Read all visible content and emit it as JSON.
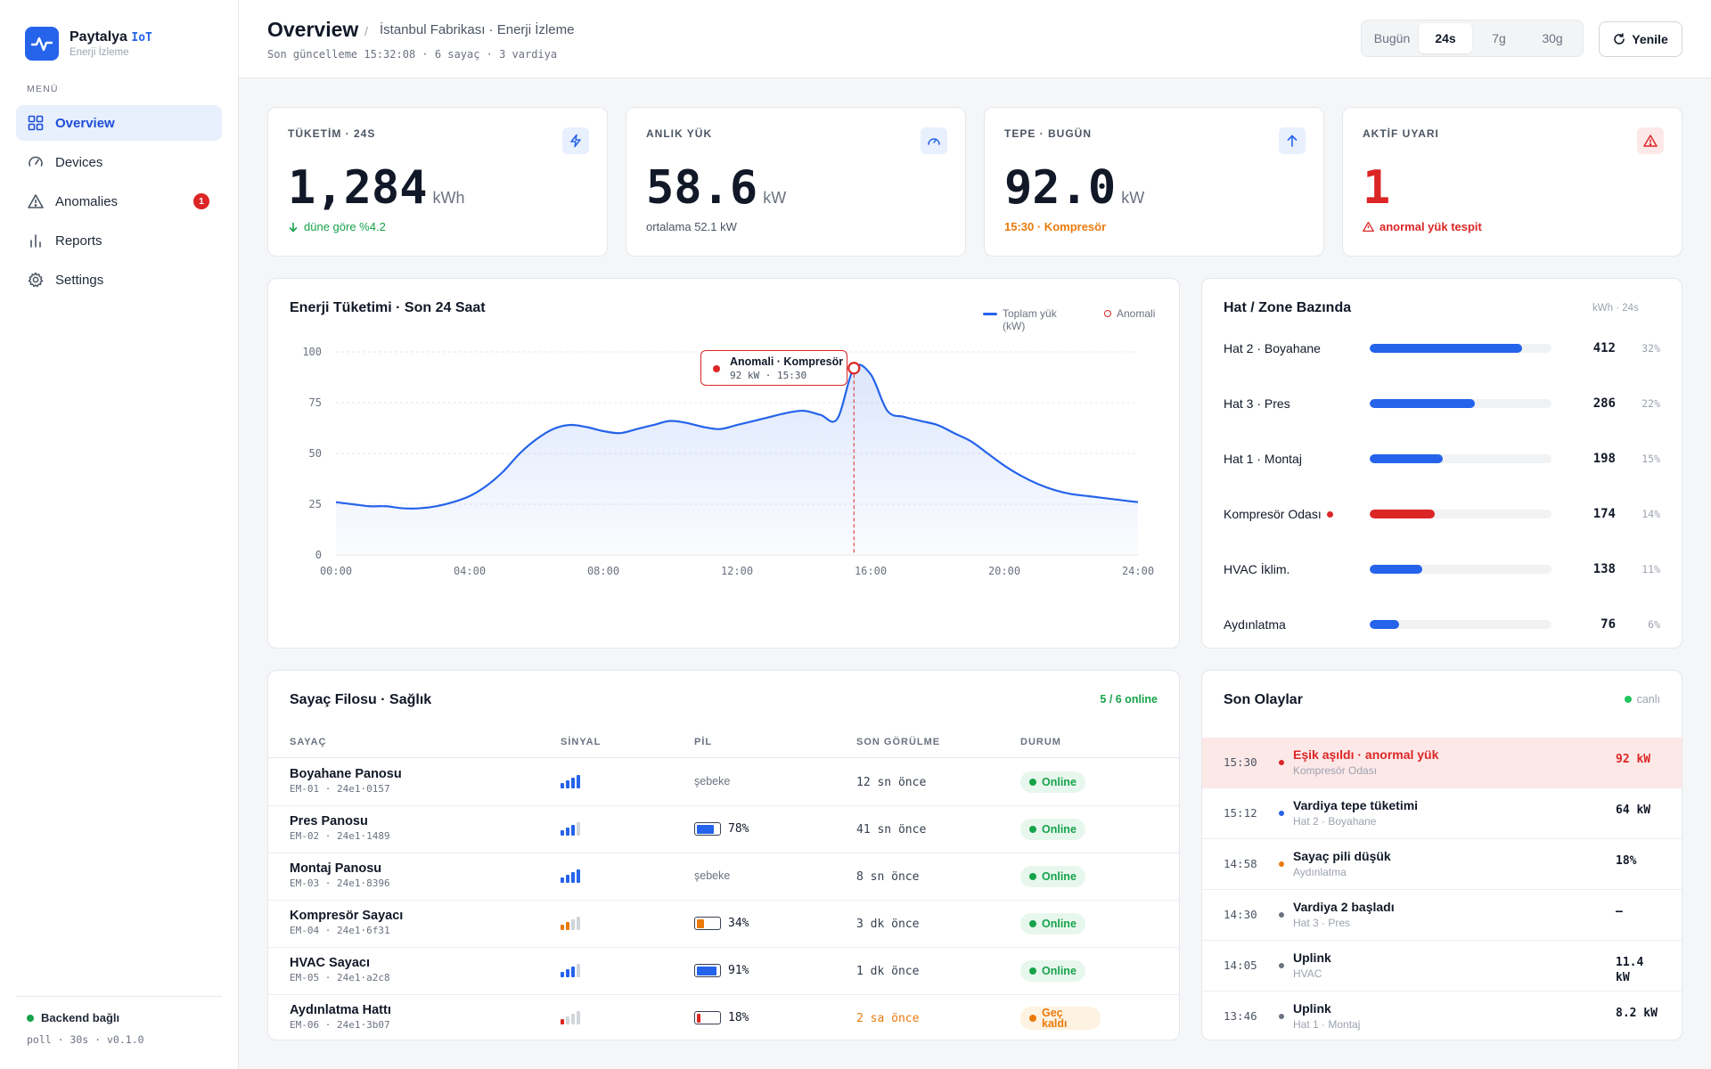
{
  "brand": {
    "name": "Paytalya",
    "tag": "IoT",
    "subtitle": "Enerji İzleme"
  },
  "sidebar": {
    "menu_label": "MENÜ",
    "items": [
      {
        "label": "Overview",
        "icon": "grid-icon",
        "active": true
      },
      {
        "label": "Devices",
        "icon": "gauge-icon"
      },
      {
        "label": "Anomalies",
        "icon": "warning-icon",
        "badge": "1"
      },
      {
        "label": "Reports",
        "icon": "bar-chart-icon"
      },
      {
        "label": "Settings",
        "icon": "gear-icon"
      }
    ],
    "backend_status": "Backend bağlı",
    "poll_info": "poll · 30s · v0.1.0"
  },
  "header": {
    "title": "Overview",
    "breadcrumb": "İstanbul Fabrikası · Enerji İzleme",
    "updated": "Son güncelleme 15:32:08 · 6 sayaç · 3 vardiya",
    "ranges": [
      "Bugün",
      "24s",
      "7g",
      "30g"
    ],
    "active_range": "24s",
    "refresh_label": "Yenile"
  },
  "kpis": {
    "consumption": {
      "label": "TÜKETİM · 24S",
      "value": "1,284",
      "unit": "kWh",
      "note": "düne göre %4.2"
    },
    "load": {
      "label": "ANLIK YÜK",
      "value": "58.6",
      "unit": "kW",
      "note": "ortalama 52.1 kW"
    },
    "peak": {
      "label": "TEPE · BUGÜN",
      "value": "92.0",
      "unit": "kW",
      "note": "15:30 · Kompresör"
    },
    "alerts": {
      "label": "AKTİF UYARI",
      "value": "1",
      "note": "anormal yük tespit"
    }
  },
  "energy_chart": {
    "title": "Enerji Tüketimi · Son 24 Saat",
    "legend_line": "Toplam yük (kW)",
    "legend_anomaly": "Anomali",
    "tooltip_title": "Anomali · Kompresör",
    "tooltip_detail": "92 kW · 15:30"
  },
  "chart_data": {
    "type": "area",
    "title": "Enerji Tüketimi · Son 24 Saat",
    "ylabel": "",
    "xlabel": "",
    "x_ticks": [
      "00:00",
      "04:00",
      "08:00",
      "12:00",
      "16:00",
      "20:00",
      "24:00"
    ],
    "y_ticks": [
      0,
      25,
      50,
      75,
      100
    ],
    "ylim": [
      0,
      100
    ],
    "xlim": [
      0,
      24
    ],
    "grid": true,
    "series": [
      {
        "name": "Toplam yük (kW)",
        "x": [
          0,
          0.5,
          1,
          1.5,
          2,
          2.5,
          3,
          3.5,
          4,
          4.5,
          5,
          5.5,
          6,
          6.5,
          7,
          7.5,
          8,
          8.5,
          9,
          9.5,
          10,
          10.5,
          11,
          11.5,
          12,
          12.5,
          13,
          13.5,
          14,
          14.5,
          15,
          15.5,
          16,
          16.5,
          17,
          17.5,
          18,
          18.5,
          19,
          19.5,
          20,
          20.5,
          21,
          21.5,
          22,
          22.5,
          23,
          23.5,
          24
        ],
        "values": [
          26,
          25,
          24,
          24,
          23,
          23,
          24,
          26,
          29,
          34,
          41,
          50,
          57,
          62,
          64,
          63,
          61,
          60,
          62,
          64,
          66,
          65,
          63,
          62,
          64,
          66,
          68,
          70,
          71,
          69,
          67,
          92,
          89,
          71,
          68,
          66,
          64,
          60,
          56,
          50,
          44,
          39,
          35,
          32,
          30,
          29,
          28,
          27,
          26
        ]
      }
    ],
    "anomalies": [
      {
        "x": 15.5,
        "y": 92,
        "label": "Anomali · Kompresör"
      }
    ],
    "legend_position": "top-right",
    "colors": {
      "line": "#2563eb",
      "anomaly": "#dc2626"
    }
  },
  "zones": {
    "title": "Hat / Zone Bazında",
    "unit": "kWh · 24s",
    "items": [
      {
        "name": "Hat 2 · Boyahane",
        "value": "412",
        "pct": "32%",
        "ratio": 0.84,
        "color": "#2563eb"
      },
      {
        "name": "Hat 3 · Pres",
        "value": "286",
        "pct": "22%",
        "ratio": 0.58,
        "color": "#2563eb"
      },
      {
        "name": "Hat 1 · Montaj",
        "value": "198",
        "pct": "15%",
        "ratio": 0.4,
        "color": "#2563eb"
      },
      {
        "name": "Kompresör Odası",
        "value": "174",
        "pct": "14%",
        "ratio": 0.36,
        "color": "#dc2626",
        "alert": true
      },
      {
        "name": "HVAC İklim.",
        "value": "138",
        "pct": "11%",
        "ratio": 0.29,
        "color": "#2563eb"
      },
      {
        "name": "Aydınlatma",
        "value": "76",
        "pct": "6%",
        "ratio": 0.16,
        "color": "#2563eb"
      }
    ]
  },
  "meters": {
    "title": "Sayaç Filosu · Sağlık",
    "online_count": "5 / 6 online",
    "columns": [
      "SAYAÇ",
      "SİNYAL",
      "PİL",
      "SON GÖRÜLME",
      "DURUM"
    ],
    "rows": [
      {
        "name": "Boyahane Panosu",
        "id": "EM-01 · 24e1·0157",
        "signal": 4,
        "battery": "şebeke",
        "battery_level": null,
        "last_seen": "12 sn önce",
        "status": "Online"
      },
      {
        "name": "Pres Panosu",
        "id": "EM-02 · 24e1·1489",
        "signal": 3,
        "battery": "78%",
        "battery_level": 0.78,
        "last_seen": "41 sn önce",
        "status": "Online"
      },
      {
        "name": "Montaj Panosu",
        "id": "EM-03 · 24e1·8396",
        "signal": 4,
        "battery": "şebeke",
        "battery_level": null,
        "last_seen": "8 sn önce",
        "status": "Online"
      },
      {
        "name": "Kompresör Sayacı",
        "id": "EM-04 · 24e1·6f31",
        "signal": 2,
        "battery": "34%",
        "battery_level": 0.34,
        "last_seen": "3 dk önce",
        "status": "Online"
      },
      {
        "name": "HVAC Sayacı",
        "id": "EM-05 · 24e1·a2c8",
        "signal": 3,
        "battery": "91%",
        "battery_level": 0.91,
        "last_seen": "1 dk önce",
        "status": "Online"
      },
      {
        "name": "Aydınlatma Hattı",
        "id": "EM-06 · 24e1·3b07",
        "signal": 1,
        "battery": "18%",
        "battery_level": 0.18,
        "last_seen": "2 sa önce",
        "status": "Geç kaldı"
      }
    ]
  },
  "events": {
    "title": "Son Olaylar",
    "live_label": "canlı",
    "items": [
      {
        "time": "15:30",
        "title": "Eşik aşıldı · anormal yük",
        "subtitle": "Kompresör Odası",
        "value": "92 kW",
        "level": "alert"
      },
      {
        "time": "15:12",
        "title": "Vardiya tepe tüketimi",
        "subtitle": "Hat 2 · Boyahane",
        "value": "64 kW",
        "level": "info"
      },
      {
        "time": "14:58",
        "title": "Sayaç pili düşük",
        "subtitle": "Aydınlatma",
        "value": "18%",
        "level": "warn"
      },
      {
        "time": "14:30",
        "title": "Vardiya 2 başladı",
        "subtitle": "Hat 3 · Pres",
        "value": "–",
        "level": "neutral"
      },
      {
        "time": "14:05",
        "title": "Uplink",
        "subtitle": "HVAC",
        "value": "11.4 kW",
        "level": "neutral"
      },
      {
        "time": "13:46",
        "title": "Uplink",
        "subtitle": "Hat 1 · Montaj",
        "value": "8.2 kW",
        "level": "neutral"
      }
    ]
  },
  "colors": {
    "accent": "#2563eb",
    "danger": "#dc2626",
    "success": "#16a34a",
    "warning": "#ea7a0c"
  }
}
